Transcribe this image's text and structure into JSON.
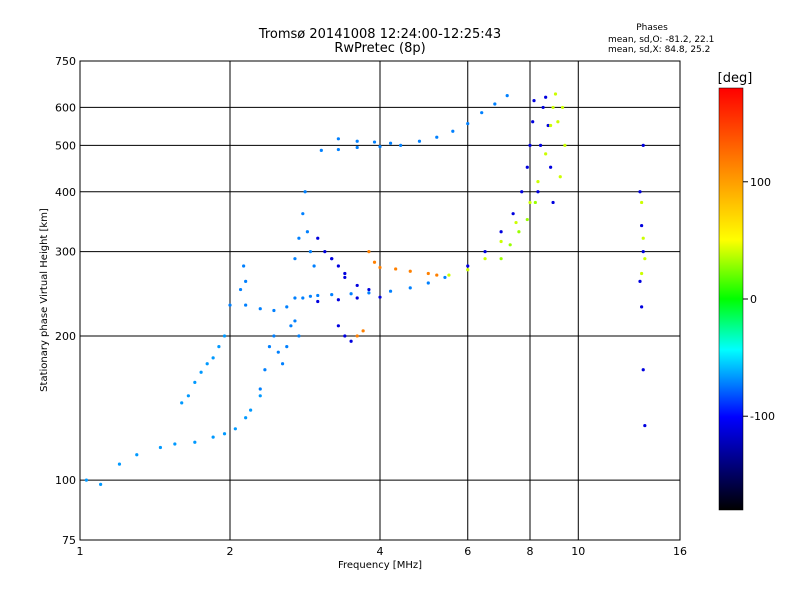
{
  "chart_data": {
    "type": "scatter",
    "title": "Tromsø 20141008 12:24:00-12:25:43",
    "subtitle": "RwPretec (8p)",
    "xlabel": "Frequency [MHz]",
    "ylabel": "Stationary phase Virtual Height [km]",
    "x_scale": "log",
    "y_scale": "log",
    "xlim": [
      1,
      16
    ],
    "ylim": [
      75,
      750
    ],
    "x_ticks": [
      1,
      2,
      4,
      6,
      8,
      10,
      16
    ],
    "y_ticks": [
      75,
      100,
      200,
      300,
      400,
      500,
      600,
      750
    ],
    "grid": true,
    "info_title": "Phases",
    "info_lines": [
      "mean, sd,O: -81.2, 22.1",
      "mean, sd,X: 84.8, 25.2"
    ],
    "colorbar": {
      "label": "[deg]",
      "range": [
        -180,
        180
      ],
      "ticks": [
        100,
        0,
        -100
      ],
      "colors": [
        "#ff0000",
        "#ff8000",
        "#ffff00",
        "#00ff00",
        "#00ffff",
        "#0000ff",
        "#000000"
      ]
    },
    "series": [
      {
        "color_deg": -70,
        "points": [
          [
            1.03,
            100
          ],
          [
            1.1,
            98
          ],
          [
            1.2,
            108
          ],
          [
            1.3,
            113
          ],
          [
            1.45,
            117
          ],
          [
            1.55,
            119
          ],
          [
            1.7,
            120
          ],
          [
            1.85,
            123
          ],
          [
            1.95,
            125
          ],
          [
            2.05,
            128
          ],
          [
            2.15,
            135
          ],
          [
            2.2,
            140
          ],
          [
            2.3,
            150
          ]
        ]
      },
      {
        "color_deg": -70,
        "points": [
          [
            1.6,
            145
          ],
          [
            1.65,
            150
          ],
          [
            1.7,
            160
          ],
          [
            1.75,
            168
          ],
          [
            1.8,
            175
          ],
          [
            1.85,
            180
          ],
          [
            1.9,
            190
          ],
          [
            1.95,
            200
          ]
        ]
      },
      {
        "color_deg": -75,
        "points": [
          [
            2.0,
            232
          ],
          [
            2.15,
            232
          ],
          [
            2.3,
            228
          ],
          [
            2.45,
            226
          ],
          [
            2.6,
            230
          ],
          [
            2.7,
            240
          ],
          [
            2.8,
            240
          ],
          [
            2.9,
            242
          ],
          [
            3.0,
            243
          ],
          [
            3.2,
            244
          ],
          [
            3.5,
            245
          ],
          [
            3.8,
            246
          ],
          [
            4.2,
            248
          ],
          [
            4.6,
            252
          ],
          [
            5.0,
            258
          ],
          [
            5.4,
            265
          ]
        ]
      },
      {
        "color_deg": -75,
        "points": [
          [
            2.1,
            250
          ],
          [
            2.13,
            280
          ],
          [
            2.15,
            260
          ],
          [
            2.7,
            290
          ],
          [
            2.75,
            320
          ],
          [
            2.8,
            360
          ],
          [
            2.83,
            400
          ],
          [
            2.86,
            330
          ],
          [
            2.9,
            300
          ],
          [
            2.95,
            280
          ]
        ]
      },
      {
        "color_deg": -75,
        "points": [
          [
            2.3,
            155
          ],
          [
            2.35,
            170
          ],
          [
            2.4,
            190
          ],
          [
            2.45,
            200
          ],
          [
            2.5,
            185
          ],
          [
            2.55,
            175
          ],
          [
            2.6,
            190
          ],
          [
            2.65,
            210
          ],
          [
            2.7,
            215
          ],
          [
            2.75,
            200
          ]
        ]
      },
      {
        "color_deg": -75,
        "points": [
          [
            3.05,
            488
          ],
          [
            3.3,
            490
          ],
          [
            3.6,
            495
          ],
          [
            4.0,
            497
          ],
          [
            4.4,
            500
          ],
          [
            4.8,
            510
          ],
          [
            5.2,
            520
          ],
          [
            5.6,
            535
          ],
          [
            6.0,
            555
          ],
          [
            6.4,
            585
          ],
          [
            6.8,
            610
          ],
          [
            7.2,
            635
          ]
        ]
      },
      {
        "color_deg": -75,
        "points": [
          [
            3.3,
            516
          ],
          [
            3.6,
            510
          ],
          [
            3.9,
            508
          ],
          [
            4.2,
            505
          ]
        ]
      },
      {
        "color_deg": -110,
        "points": [
          [
            3.0,
            236
          ],
          [
            3.3,
            238
          ],
          [
            3.6,
            240
          ],
          [
            4.0,
            241
          ],
          [
            3.2,
            290
          ],
          [
            3.4,
            265
          ],
          [
            3.6,
            255
          ],
          [
            3.8,
            250
          ]
        ]
      },
      {
        "color_deg": -110,
        "points": [
          [
            3.0,
            320
          ],
          [
            3.1,
            300
          ],
          [
            3.2,
            290
          ],
          [
            3.3,
            280
          ],
          [
            3.4,
            270
          ]
        ]
      },
      {
        "color_deg": -110,
        "points": [
          [
            6.0,
            280
          ],
          [
            6.5,
            300
          ],
          [
            7.0,
            330
          ],
          [
            7.4,
            360
          ],
          [
            7.7,
            400
          ],
          [
            7.9,
            450
          ],
          [
            8.0,
            500
          ],
          [
            8.1,
            560
          ],
          [
            8.15,
            620
          ]
        ]
      },
      {
        "color_deg": -110,
        "points": [
          [
            8.3,
            400
          ],
          [
            8.4,
            500
          ],
          [
            8.5,
            600
          ],
          [
            8.6,
            630
          ],
          [
            8.7,
            550
          ],
          [
            8.8,
            450
          ],
          [
            8.9,
            380
          ]
        ]
      },
      {
        "color_deg": -110,
        "points": [
          [
            3.3,
            210
          ],
          [
            3.4,
            200
          ],
          [
            3.5,
            195
          ]
        ]
      },
      {
        "color_deg": 140,
        "points": [
          [
            3.8,
            300
          ],
          [
            3.9,
            285
          ],
          [
            4.0,
            278
          ],
          [
            4.3,
            276
          ],
          [
            4.6,
            273
          ],
          [
            5.0,
            270
          ],
          [
            5.2,
            268
          ],
          [
            3.6,
            200
          ],
          [
            3.7,
            205
          ]
        ]
      },
      {
        "color_deg": 80,
        "points": [
          [
            5.5,
            268
          ],
          [
            6.0,
            275
          ],
          [
            6.5,
            290
          ],
          [
            7.0,
            315
          ],
          [
            7.5,
            345
          ],
          [
            8.0,
            380
          ],
          [
            8.3,
            420
          ],
          [
            8.6,
            480
          ],
          [
            8.8,
            550
          ],
          [
            8.9,
            600
          ],
          [
            9.0,
            640
          ],
          [
            9.1,
            560
          ],
          [
            9.3,
            600
          ],
          [
            9.4,
            500
          ],
          [
            9.2,
            430
          ]
        ]
      },
      {
        "color_deg": 60,
        "points": [
          [
            7.0,
            290
          ],
          [
            7.3,
            310
          ],
          [
            7.6,
            330
          ],
          [
            7.9,
            350
          ],
          [
            8.2,
            380
          ]
        ]
      },
      {
        "color_deg": -110,
        "points": [
          [
            13.5,
            500
          ],
          [
            13.3,
            400
          ],
          [
            13.4,
            340
          ],
          [
            13.5,
            300
          ],
          [
            13.3,
            260
          ],
          [
            13.4,
            230
          ],
          [
            13.5,
            170
          ],
          [
            13.6,
            130
          ]
        ]
      },
      {
        "color_deg": 80,
        "points": [
          [
            13.4,
            380
          ],
          [
            13.5,
            320
          ],
          [
            13.6,
            290
          ],
          [
            13.4,
            270
          ]
        ]
      }
    ]
  }
}
